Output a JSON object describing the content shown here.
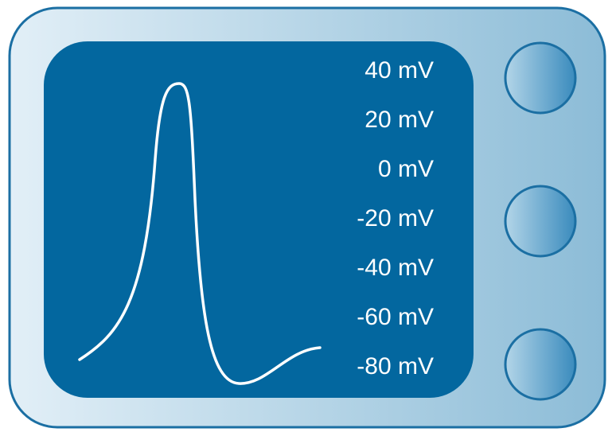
{
  "scale_labels": [
    "40 mV",
    "20 mV",
    "0 mV",
    "-20 mV",
    "-40 mV",
    "-60 mV",
    "-80 mV"
  ]
}
